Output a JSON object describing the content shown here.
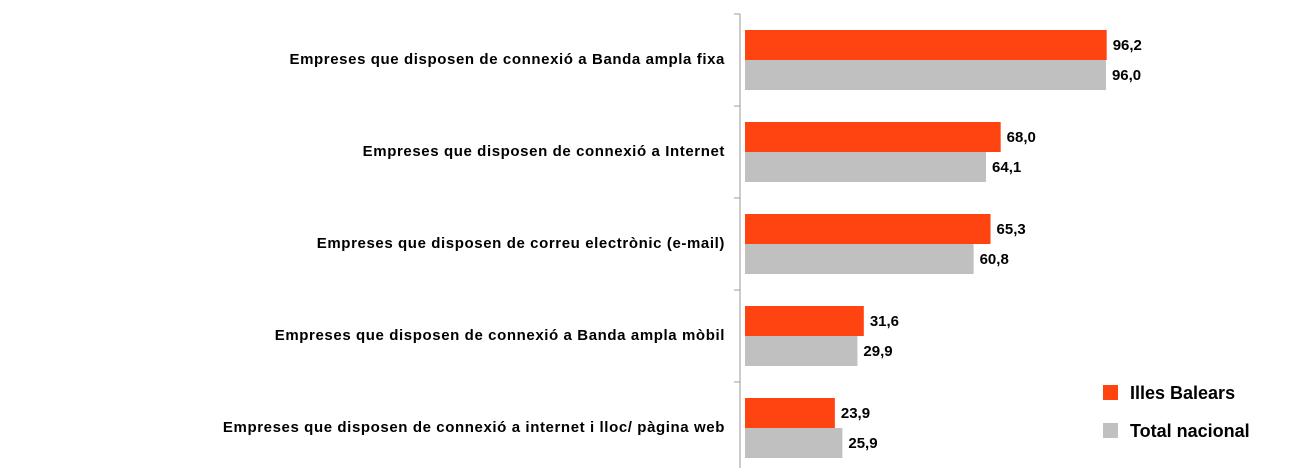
{
  "chart_data": {
    "type": "barh",
    "categories": [
      "Empreses que disposen de connexió a Banda ampla fixa",
      "Empreses que disposen de connexió a Internet",
      "Empreses que disposen de correu electrònic (e-mail)",
      "Empreses que disposen de connexió a Banda ampla mòbil",
      "Empreses que disposen de connexió a internet i lloc/ pàgina web"
    ],
    "series": [
      {
        "name": "Illes Balears",
        "color": "#ff4411",
        "values": [
          96.2,
          68.0,
          65.3,
          31.6,
          23.9
        ],
        "value_labels": [
          "96,2",
          "68,0",
          "65,3",
          "31,6",
          "23,9"
        ]
      },
      {
        "name": "Total nacional",
        "color": "#c0c0c0",
        "values": [
          96.0,
          64.1,
          60.8,
          29.9,
          25.9
        ],
        "value_labels": [
          "96,0",
          "64,1",
          "60,8",
          "29,9",
          "25,9"
        ]
      }
    ],
    "xlim": [
      0,
      100
    ],
    "legend": "bottom-right"
  }
}
